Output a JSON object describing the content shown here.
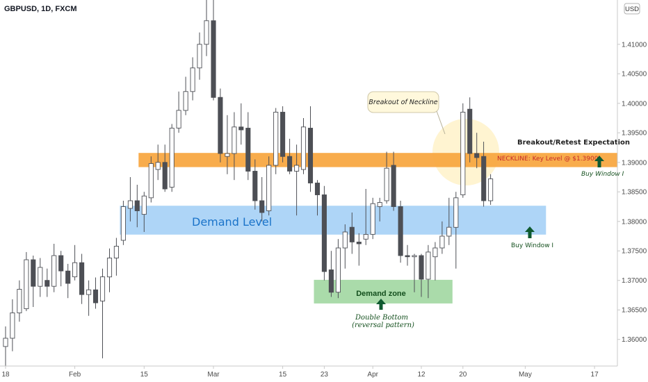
{
  "chart_data": {
    "type": "candlestick",
    "symbol_label": "GBPUSD, 1D, FXCM",
    "currency": "USD",
    "ylim": [
      1.3555,
      1.4175
    ],
    "y_ticks": [
      "1.41000",
      "1.40500",
      "1.40000",
      "1.39500",
      "1.39000",
      "1.38500",
      "1.38000",
      "1.37500",
      "1.37000",
      "1.36500",
      "1.36000"
    ],
    "x_ticks": [
      {
        "label": "18",
        "i": 0
      },
      {
        "label": "Feb",
        "i": 10
      },
      {
        "label": "15",
        "i": 20
      },
      {
        "label": "Mar",
        "i": 30
      },
      {
        "label": "15",
        "i": 40
      },
      {
        "label": "23",
        "i": 46
      },
      {
        "label": "Apr",
        "i": 53
      },
      {
        "label": "12",
        "i": 60
      },
      {
        "label": "20",
        "i": 66
      },
      {
        "label": "May",
        "i": 75
      },
      {
        "label": "17",
        "i": 85
      }
    ],
    "x_range": [
      -0.8,
      88.3
    ],
    "candles": [
      {
        "i": 0,
        "o": 1.3588,
        "h": 1.3622,
        "l": 1.3555,
        "c": 1.3602
      },
      {
        "i": 1,
        "o": 1.3602,
        "h": 1.3668,
        "l": 1.358,
        "c": 1.3645
      },
      {
        "i": 2,
        "o": 1.3645,
        "h": 1.37,
        "l": 1.363,
        "c": 1.3685
      },
      {
        "i": 3,
        "o": 1.3652,
        "h": 1.3748,
        "l": 1.3648,
        "c": 1.3735
      },
      {
        "i": 4,
        "o": 1.3735,
        "h": 1.3742,
        "l": 1.3655,
        "c": 1.369
      },
      {
        "i": 5,
        "o": 1.369,
        "h": 1.3738,
        "l": 1.3672,
        "c": 1.3722
      },
      {
        "i": 6,
        "o": 1.37,
        "h": 1.372,
        "l": 1.3672,
        "c": 1.369
      },
      {
        "i": 7,
        "o": 1.369,
        "h": 1.3762,
        "l": 1.368,
        "c": 1.3742
      },
      {
        "i": 8,
        "o": 1.3742,
        "h": 1.375,
        "l": 1.369,
        "c": 1.3716
      },
      {
        "i": 9,
        "o": 1.3716,
        "h": 1.3728,
        "l": 1.367,
        "c": 1.3695
      },
      {
        "i": 10,
        "o": 1.3706,
        "h": 1.376,
        "l": 1.37,
        "c": 1.373
      },
      {
        "i": 11,
        "o": 1.373,
        "h": 1.3745,
        "l": 1.366,
        "c": 1.3676
      },
      {
        "i": 12,
        "o": 1.3676,
        "h": 1.37,
        "l": 1.364,
        "c": 1.3684
      },
      {
        "i": 13,
        "o": 1.3684,
        "h": 1.3705,
        "l": 1.3652,
        "c": 1.3662
      },
      {
        "i": 14,
        "o": 1.3665,
        "h": 1.372,
        "l": 1.3568,
        "c": 1.3706
      },
      {
        "i": 15,
        "o": 1.3706,
        "h": 1.3754,
        "l": 1.368,
        "c": 1.3738
      },
      {
        "i": 16,
        "o": 1.3738,
        "h": 1.3772,
        "l": 1.3708,
        "c": 1.3758
      },
      {
        "i": 17,
        "o": 1.3768,
        "h": 1.3835,
        "l": 1.376,
        "c": 1.3825
      },
      {
        "i": 18,
        "o": 1.3822,
        "h": 1.3875,
        "l": 1.38,
        "c": 1.3835
      },
      {
        "i": 19,
        "o": 1.3835,
        "h": 1.3862,
        "l": 1.379,
        "c": 1.3818
      },
      {
        "i": 20,
        "o": 1.3812,
        "h": 1.385,
        "l": 1.3782,
        "c": 1.3843
      },
      {
        "i": 21,
        "o": 1.384,
        "h": 1.391,
        "l": 1.3832,
        "c": 1.3898
      },
      {
        "i": 22,
        "o": 1.3888,
        "h": 1.393,
        "l": 1.387,
        "c": 1.39
      },
      {
        "i": 23,
        "o": 1.39,
        "h": 1.393,
        "l": 1.385,
        "c": 1.3855
      },
      {
        "i": 24,
        "o": 1.3858,
        "h": 1.3965,
        "l": 1.385,
        "c": 1.3958
      },
      {
        "i": 25,
        "o": 1.3958,
        "h": 1.402,
        "l": 1.395,
        "c": 1.3988
      },
      {
        "i": 26,
        "o": 1.3988,
        "h": 1.4045,
        "l": 1.398,
        "c": 1.402
      },
      {
        "i": 27,
        "o": 1.402,
        "h": 1.4078,
        "l": 1.4005,
        "c": 1.406
      },
      {
        "i": 28,
        "o": 1.406,
        "h": 1.412,
        "l": 1.404,
        "c": 1.41
      },
      {
        "i": 29,
        "o": 1.41,
        "h": 1.4175,
        "l": 1.408,
        "c": 1.414
      },
      {
        "i": 30,
        "o": 1.414,
        "h": 1.4175,
        "l": 1.4005,
        "c": 1.401
      },
      {
        "i": 31,
        "o": 1.401,
        "h": 1.4025,
        "l": 1.39,
        "c": 1.3915
      },
      {
        "i": 32,
        "o": 1.391,
        "h": 1.398,
        "l": 1.388,
        "c": 1.3915
      },
      {
        "i": 33,
        "o": 1.3915,
        "h": 1.3985,
        "l": 1.387,
        "c": 1.396
      },
      {
        "i": 34,
        "o": 1.396,
        "h": 1.4,
        "l": 1.393,
        "c": 1.3955
      },
      {
        "i": 35,
        "o": 1.3958,
        "h": 1.3985,
        "l": 1.387,
        "c": 1.3885
      },
      {
        "i": 36,
        "o": 1.3885,
        "h": 1.3905,
        "l": 1.382,
        "c": 1.3835
      },
      {
        "i": 37,
        "o": 1.3835,
        "h": 1.3875,
        "l": 1.38,
        "c": 1.3815
      },
      {
        "i": 38,
        "o": 1.3818,
        "h": 1.391,
        "l": 1.381,
        "c": 1.3895
      },
      {
        "i": 39,
        "o": 1.3895,
        "h": 1.3992,
        "l": 1.388,
        "c": 1.3985
      },
      {
        "i": 40,
        "o": 1.3985,
        "h": 1.3995,
        "l": 1.39,
        "c": 1.391
      },
      {
        "i": 41,
        "o": 1.391,
        "h": 1.394,
        "l": 1.388,
        "c": 1.3885
      },
      {
        "i": 42,
        "o": 1.3885,
        "h": 1.393,
        "l": 1.381,
        "c": 1.3895
      },
      {
        "i": 43,
        "o": 1.3888,
        "h": 1.3975,
        "l": 1.388,
        "c": 1.396
      },
      {
        "i": 44,
        "o": 1.3958,
        "h": 1.3995,
        "l": 1.385,
        "c": 1.3865
      },
      {
        "i": 45,
        "o": 1.3865,
        "h": 1.387,
        "l": 1.381,
        "c": 1.3845
      },
      {
        "i": 46,
        "o": 1.3845,
        "h": 1.386,
        "l": 1.37,
        "c": 1.3715
      },
      {
        "i": 47,
        "o": 1.3718,
        "h": 1.375,
        "l": 1.3672,
        "c": 1.368
      },
      {
        "i": 48,
        "o": 1.368,
        "h": 1.377,
        "l": 1.367,
        "c": 1.3755
      },
      {
        "i": 49,
        "o": 1.3755,
        "h": 1.3795,
        "l": 1.372,
        "c": 1.3782
      },
      {
        "i": 50,
        "o": 1.379,
        "h": 1.3815,
        "l": 1.3745,
        "c": 1.3765
      },
      {
        "i": 51,
        "o": 1.3765,
        "h": 1.378,
        "l": 1.3725,
        "c": 1.3762
      },
      {
        "i": 52,
        "o": 1.377,
        "h": 1.3855,
        "l": 1.376,
        "c": 1.3778
      },
      {
        "i": 53,
        "o": 1.3778,
        "h": 1.384,
        "l": 1.377,
        "c": 1.383
      },
      {
        "i": 54,
        "o": 1.3825,
        "h": 1.384,
        "l": 1.38,
        "c": 1.3832
      },
      {
        "i": 55,
        "o": 1.3835,
        "h": 1.3918,
        "l": 1.383,
        "c": 1.389
      },
      {
        "i": 56,
        "o": 1.3895,
        "h": 1.3918,
        "l": 1.3818,
        "c": 1.3825
      },
      {
        "i": 57,
        "o": 1.3825,
        "h": 1.3835,
        "l": 1.373,
        "c": 1.3742
      },
      {
        "i": 58,
        "o": 1.3742,
        "h": 1.376,
        "l": 1.3725,
        "c": 1.374
      },
      {
        "i": 59,
        "o": 1.374,
        "h": 1.3745,
        "l": 1.368,
        "c": 1.3742
      },
      {
        "i": 60,
        "o": 1.3742,
        "h": 1.3745,
        "l": 1.3672,
        "c": 1.3702
      },
      {
        "i": 61,
        "o": 1.3702,
        "h": 1.376,
        "l": 1.367,
        "c": 1.3748
      },
      {
        "i": 62,
        "o": 1.374,
        "h": 1.3765,
        "l": 1.37,
        "c": 1.3755
      },
      {
        "i": 63,
        "o": 1.3755,
        "h": 1.38,
        "l": 1.3745,
        "c": 1.3775
      },
      {
        "i": 64,
        "o": 1.3775,
        "h": 1.384,
        "l": 1.376,
        "c": 1.379
      },
      {
        "i": 65,
        "o": 1.379,
        "h": 1.385,
        "l": 1.372,
        "c": 1.384
      },
      {
        "i": 66,
        "o": 1.3845,
        "h": 1.4,
        "l": 1.384,
        "c": 1.3985
      },
      {
        "i": 67,
        "o": 1.399,
        "h": 1.401,
        "l": 1.39,
        "c": 1.3915
      },
      {
        "i": 68,
        "o": 1.3915,
        "h": 1.395,
        "l": 1.389,
        "c": 1.3908
      },
      {
        "i": 69,
        "o": 1.391,
        "h": 1.3935,
        "l": 1.3825,
        "c": 1.3835
      },
      {
        "i": 70,
        "o": 1.3835,
        "h": 1.388,
        "l": 1.3828,
        "c": 1.3872
      }
    ],
    "zones": [
      {
        "name": "Demand Level",
        "top": 1.38265,
        "bottom": 1.37775,
        "i_start": 16.5,
        "i_end": 78,
        "fill": "#aad3f7",
        "label_color": "#1a73c9"
      },
      {
        "name": "Demand zone",
        "top": 1.3701,
        "bottom": 1.3661,
        "i_start": 44.5,
        "i_end": 64.5,
        "fill": "#a5d9a5",
        "label_color": "#134f1d"
      },
      {
        "name": "NECKLINE",
        "top": 1.3916,
        "bottom": 1.3892,
        "i_start": 19.2,
        "i_end": 88.3,
        "fill": "#f7a53d",
        "label_color": "#c62828"
      }
    ],
    "annotations": {
      "neckline_label": "NECKLINE: Key Level @ $1.3900",
      "demand_level": "Demand Level",
      "demand_zone": "Demand zone",
      "double_bottom_1": "Double Bottom",
      "double_bottom_2": "(reversal pattern)",
      "breakout_callout": "Breakout of Neckline",
      "breakout_retest": "Breakout/Retest Expectation",
      "buy_window_1": "Buy Window I",
      "buy_window_2": "Buy Window I"
    },
    "colors": {
      "bull_body": "#ffffff",
      "bear_body": "#4d4f55",
      "outline": "#4d4f55",
      "arrow": "#0f5a30",
      "callout_bg": "#fff8dc",
      "circle_fill": "#fff2c9"
    }
  }
}
